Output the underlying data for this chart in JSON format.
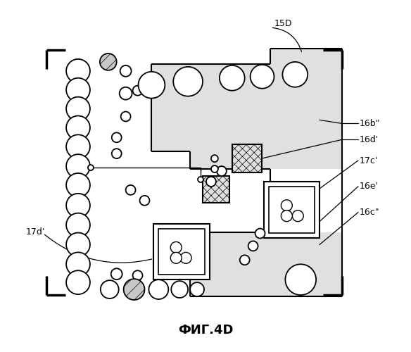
{
  "title": "ФИГ.4D",
  "label_15D": "15D",
  "label_16b": "16b\"",
  "label_16d": "16d'",
  "label_17c": "17c'",
  "label_16e": "16e'",
  "label_16c": "16c\"",
  "label_17d": "17d'",
  "bg_color": "#ffffff",
  "fig_width": 5.84,
  "fig_height": 5.0,
  "dpi": 100
}
